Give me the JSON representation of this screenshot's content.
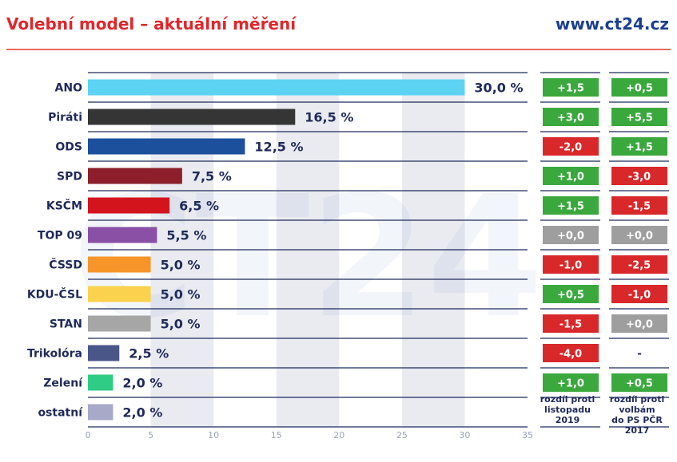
{
  "header": {
    "title": "Volební model – aktuální měření",
    "site": "www.ct24.cz"
  },
  "watermark": "CT24",
  "colors": {
    "title": "#e0262b",
    "site": "#1b3f8c",
    "positive": "#3aa83d",
    "negative": "#d8282a",
    "neutral": "#9e9e9e"
  },
  "chart_data": {
    "type": "bar",
    "orientation": "horizontal",
    "title": "Volební model – aktuální měření",
    "xlim": [
      0,
      35
    ],
    "xticks": [
      0,
      5,
      10,
      15,
      20,
      25,
      30,
      35
    ],
    "grid": "alternating vertical bands",
    "categories": [
      "ANO",
      "Piráti",
      "ODS",
      "SPD",
      "KSČM",
      "TOP 09",
      "ČSSD",
      "KDU-ČSL",
      "STAN",
      "Trikolóra",
      "Zelení",
      "ostatní"
    ],
    "values": [
      30.0,
      16.5,
      12.5,
      7.5,
      6.5,
      5.5,
      5.0,
      5.0,
      5.0,
      2.5,
      2.0,
      2.0
    ],
    "value_labels": [
      "30,0 %",
      "16,5 %",
      "12,5 %",
      "7,5 %",
      "6,5 %",
      "5,5 %",
      "5,0 %",
      "5,0 %",
      "5,0 %",
      "2,5 %",
      "2,0 %",
      "2,0 %"
    ],
    "bar_colors": [
      "#5cd3f2",
      "#353535",
      "#1c4f9c",
      "#8c1f2a",
      "#d3141c",
      "#8950a5",
      "#f7952a",
      "#fbd24e",
      "#a6a6a6",
      "#4a5688",
      "#2ecc84",
      "#a7a9c8"
    ],
    "change_columns": [
      {
        "label": [
          "rozdíl proti",
          "listopadu",
          "2019"
        ],
        "values": [
          "+1,5",
          "+3,0",
          "-2,0",
          "+1,0",
          "+1,5",
          "+0,0",
          "-1,0",
          "+0,5",
          "-1,5",
          "-4,0",
          "+1,0",
          ""
        ],
        "signs": [
          "pos",
          "pos",
          "neg",
          "pos",
          "pos",
          "zero",
          "neg",
          "pos",
          "neg",
          "neg",
          "pos",
          "none"
        ]
      },
      {
        "label": [
          "rozdíl proti",
          "volbám",
          "do PS PČR",
          "2017"
        ],
        "values": [
          "+0,5",
          "+5,5",
          "+1,5",
          "-3,0",
          "-1,5",
          "+0,0",
          "-2,5",
          "-1,0",
          "+0,0",
          "-",
          "+0,5",
          ""
        ],
        "signs": [
          "pos",
          "pos",
          "pos",
          "neg",
          "neg",
          "zero",
          "neg",
          "neg",
          "zero",
          "dash",
          "pos",
          "none"
        ]
      }
    ]
  }
}
